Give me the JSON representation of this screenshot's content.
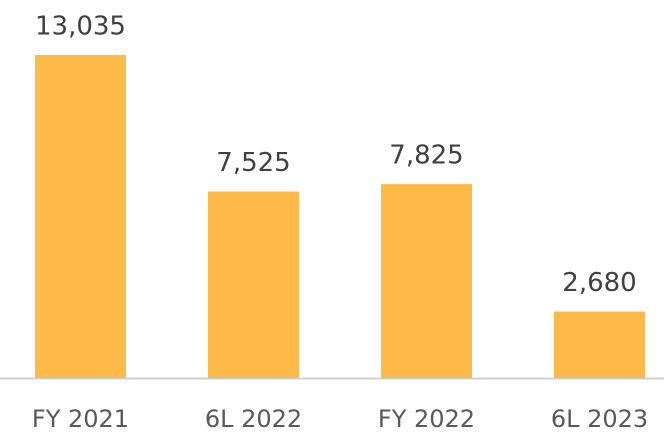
{
  "chart_data": {
    "type": "bar",
    "categories": [
      "FY 2021",
      "6L 2022",
      "FY 2022",
      "6L 2023"
    ],
    "values": [
      13035,
      7525,
      7825,
      2680
    ],
    "value_labels": [
      "13,035",
      "7,525",
      "7,825",
      "2,680"
    ],
    "color": "#fdba48"
  }
}
